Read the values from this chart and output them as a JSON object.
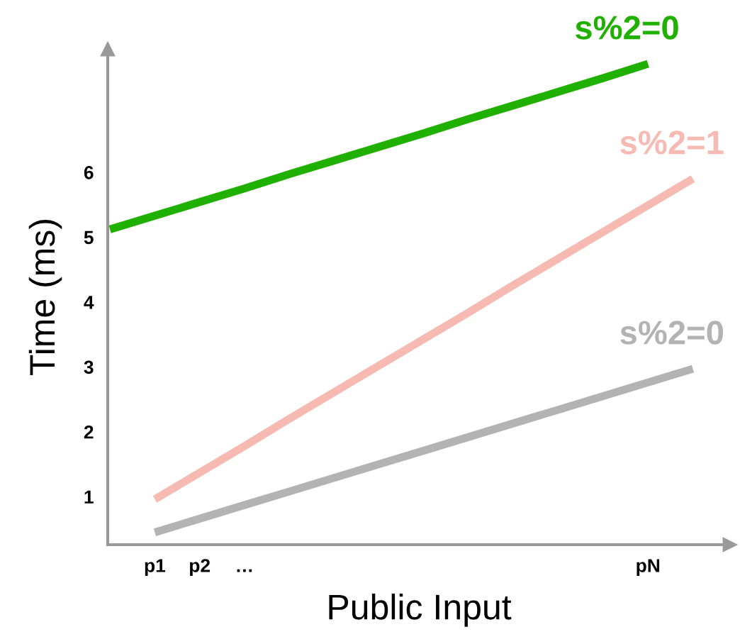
{
  "chart_data": {
    "type": "line",
    "xlabel": "Public Input",
    "ylabel": "Time (ms)",
    "categories": [
      null,
      "p1",
      "p2",
      "…",
      null,
      null,
      null,
      null,
      null,
      null,
      null,
      null,
      "pN",
      null
    ],
    "ylim": [
      0.26,
      7.9
    ],
    "yticks": [
      1,
      2,
      3,
      4,
      5,
      6
    ],
    "grid": false,
    "legend": false,
    "marker": "none",
    "line_style": "solid",
    "series": [
      {
        "name": "s%2=0",
        "color": "#1fb000",
        "values": [
          5.12,
          5.33,
          5.54,
          5.75,
          5.97,
          6.18,
          6.39,
          6.6,
          6.82,
          7.03,
          7.24,
          7.45,
          7.67,
          null
        ]
      },
      {
        "name": "s%2=1",
        "color": "#f7bab2",
        "values": [
          null,
          0.96,
          1.37,
          1.78,
          2.2,
          2.61,
          3.02,
          3.43,
          3.84,
          4.26,
          4.67,
          5.08,
          5.49,
          5.9
        ]
      },
      {
        "name": "s%2=0",
        "color": "#b3b3b3",
        "values": [
          null,
          0.45,
          0.66,
          0.87,
          1.08,
          1.29,
          1.5,
          1.71,
          1.92,
          2.13,
          2.34,
          2.55,
          2.76,
          2.97
        ]
      }
    ]
  }
}
